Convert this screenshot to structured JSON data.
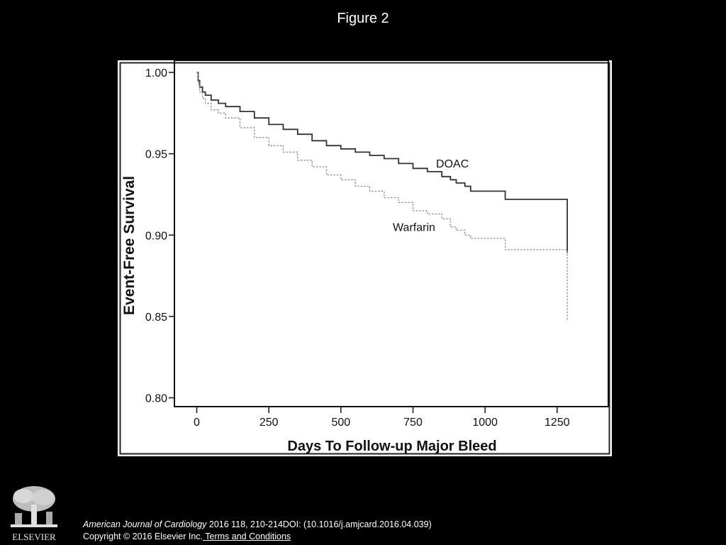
{
  "slide": {
    "title": "Figure 2"
  },
  "colors": {
    "background": "#000000",
    "panel": "#ffffff",
    "doac_line": "#333333",
    "warfarin_line": "#8a8a8a"
  },
  "chart_data": {
    "type": "line",
    "title": "",
    "xlabel": "Days To Follow-up Major Bleed",
    "ylabel": "Event-Free Survival",
    "xlim": [
      -75,
      1425
    ],
    "ylim": [
      0.795,
      1.007
    ],
    "xticks": [
      0,
      250,
      500,
      750,
      1000,
      1250
    ],
    "xtick_labels": [
      "0",
      "250",
      "500",
      "750",
      "1000",
      "1250"
    ],
    "yticks": [
      0.8,
      0.85,
      0.9,
      0.95,
      1.0
    ],
    "ytick_labels": [
      "0.80",
      "0.85",
      "0.90",
      "0.95",
      "1.00"
    ],
    "grid": false,
    "step": true,
    "series": [
      {
        "name": "DOAC",
        "style": "solid",
        "color": "#333333",
        "x": [
          0,
          5,
          10,
          20,
          30,
          50,
          75,
          100,
          150,
          200,
          250,
          300,
          350,
          400,
          450,
          500,
          550,
          600,
          650,
          700,
          750,
          800,
          850,
          880,
          900,
          930,
          950,
          1000,
          1050,
          1070,
          1100,
          1200,
          1285,
          1285
        ],
        "y": [
          1.0,
          0.995,
          0.991,
          0.988,
          0.986,
          0.983,
          0.981,
          0.979,
          0.976,
          0.972,
          0.968,
          0.965,
          0.962,
          0.958,
          0.955,
          0.953,
          0.951,
          0.949,
          0.947,
          0.944,
          0.941,
          0.939,
          0.936,
          0.934,
          0.932,
          0.93,
          0.927,
          0.927,
          0.927,
          0.922,
          0.922,
          0.922,
          0.922,
          0.889
        ]
      },
      {
        "name": "Warfarin",
        "style": "dashed",
        "color": "#8a8a8a",
        "x": [
          0,
          5,
          10,
          20,
          30,
          50,
          75,
          100,
          150,
          200,
          250,
          300,
          350,
          400,
          450,
          500,
          550,
          600,
          650,
          700,
          750,
          800,
          850,
          880,
          900,
          930,
          950,
          1000,
          1050,
          1070,
          1100,
          1200,
          1285,
          1285
        ],
        "y": [
          1.0,
          0.993,
          0.988,
          0.984,
          0.981,
          0.977,
          0.975,
          0.972,
          0.966,
          0.96,
          0.955,
          0.951,
          0.946,
          0.942,
          0.937,
          0.934,
          0.93,
          0.927,
          0.923,
          0.92,
          0.915,
          0.913,
          0.91,
          0.905,
          0.903,
          0.9,
          0.898,
          0.898,
          0.898,
          0.891,
          0.891,
          0.891,
          0.891,
          0.847
        ]
      }
    ],
    "annotations": [
      {
        "text": "DOAC",
        "x": 830,
        "y": 0.9415
      },
      {
        "text": "Warfarin",
        "x": 680,
        "y": 0.9025
      }
    ]
  },
  "logo": {
    "text": "ELSEVIER"
  },
  "citation": {
    "journal": "American Journal of Cardiology",
    "details": " 2016 118, 210-214DOI: (10.1016/j.amjcard.2016.04.039)",
    "copyright": "Copyright © 2016 Elsevier Inc.",
    "terms_link": " Terms and Conditions"
  }
}
